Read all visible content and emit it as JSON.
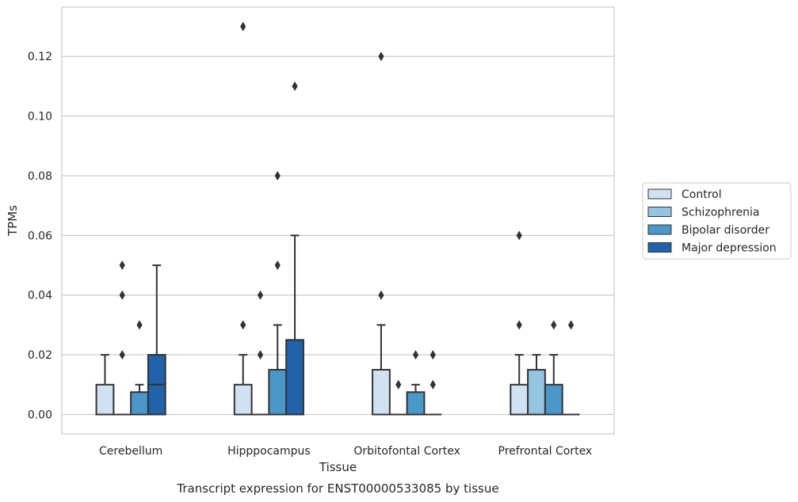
{
  "chart_data": {
    "type": "box",
    "title": "",
    "caption": "Transcript expression for ENST00000533085 by tissue",
    "xlabel": "Tissue",
    "ylabel": "TPMs",
    "ylim": [
      -0.0065,
      0.1365
    ],
    "yticks": [
      0.0,
      0.02,
      0.04,
      0.06,
      0.08,
      0.1,
      0.12
    ],
    "ytick_labels": [
      "0.00",
      "0.02",
      "0.04",
      "0.06",
      "0.08",
      "0.10",
      "0.12"
    ],
    "grid": "horizontal",
    "legend_position": "right",
    "categories": [
      "Cerebellum",
      "Hipppocampus",
      "Orbitofontal Cortex",
      "Prefrontal Cortex"
    ],
    "series": [
      {
        "name": "Control",
        "color": "#d0e1f2",
        "boxes": [
          {
            "q1": 0.0,
            "median": 0.0,
            "q3": 0.01,
            "whisker_low": 0.0,
            "whisker_high": 0.02,
            "outliers": []
          },
          {
            "q1": 0.0,
            "median": 0.0,
            "q3": 0.01,
            "whisker_low": 0.0,
            "whisker_high": 0.02,
            "outliers": [
              0.03,
              0.13
            ]
          },
          {
            "q1": 0.0,
            "median": 0.0,
            "q3": 0.015,
            "whisker_low": 0.0,
            "whisker_high": 0.03,
            "outliers": [
              0.04,
              0.12
            ]
          },
          {
            "q1": 0.0,
            "median": 0.0,
            "q3": 0.01,
            "whisker_low": 0.0,
            "whisker_high": 0.02,
            "outliers": [
              0.03,
              0.06
            ]
          }
        ]
      },
      {
        "name": "Schizophrenia",
        "color": "#94c4df",
        "boxes": [
          {
            "q1": 0.0,
            "median": 0.0,
            "q3": 0.0,
            "whisker_low": 0.0,
            "whisker_high": 0.0,
            "outliers": [
              0.02,
              0.04,
              0.05
            ]
          },
          {
            "q1": 0.0,
            "median": 0.0,
            "q3": 0.0,
            "whisker_low": 0.0,
            "whisker_high": 0.0,
            "outliers": [
              0.02,
              0.04
            ]
          },
          {
            "q1": 0.0,
            "median": 0.0,
            "q3": 0.0,
            "whisker_low": 0.0,
            "whisker_high": 0.0,
            "outliers": [
              0.01
            ]
          },
          {
            "q1": 0.0,
            "median": 0.0,
            "q3": 0.015,
            "whisker_low": 0.0,
            "whisker_high": 0.02,
            "outliers": []
          }
        ]
      },
      {
        "name": "Bipolar disorder",
        "color": "#4a98c9",
        "boxes": [
          {
            "q1": 0.0,
            "median": 0.0,
            "q3": 0.0075,
            "whisker_low": 0.0,
            "whisker_high": 0.01,
            "outliers": [
              0.03
            ]
          },
          {
            "q1": 0.0,
            "median": 0.0,
            "q3": 0.015,
            "whisker_low": 0.0,
            "whisker_high": 0.03,
            "outliers": [
              0.05,
              0.08
            ]
          },
          {
            "q1": 0.0,
            "median": 0.0,
            "q3": 0.0075,
            "whisker_low": 0.0,
            "whisker_high": 0.01,
            "outliers": [
              0.02
            ]
          },
          {
            "q1": 0.0,
            "median": 0.0,
            "q3": 0.01,
            "whisker_low": 0.0,
            "whisker_high": 0.02,
            "outliers": [
              0.03
            ]
          }
        ]
      },
      {
        "name": "Major depression",
        "color": "#2163aa",
        "boxes": [
          {
            "q1": 0.0,
            "median": 0.01,
            "q3": 0.02,
            "whisker_low": 0.0,
            "whisker_high": 0.05,
            "outliers": []
          },
          {
            "q1": 0.0,
            "median": 0.0,
            "q3": 0.025,
            "whisker_low": 0.0,
            "whisker_high": 0.06,
            "outliers": [
              0.11
            ]
          },
          {
            "q1": 0.0,
            "median": 0.0,
            "q3": 0.0,
            "whisker_low": 0.0,
            "whisker_high": 0.0,
            "outliers": [
              0.01,
              0.02
            ]
          },
          {
            "q1": 0.0,
            "median": 0.0,
            "q3": 0.0,
            "whisker_low": 0.0,
            "whisker_high": 0.0,
            "outliers": [
              0.03
            ]
          }
        ]
      }
    ]
  }
}
